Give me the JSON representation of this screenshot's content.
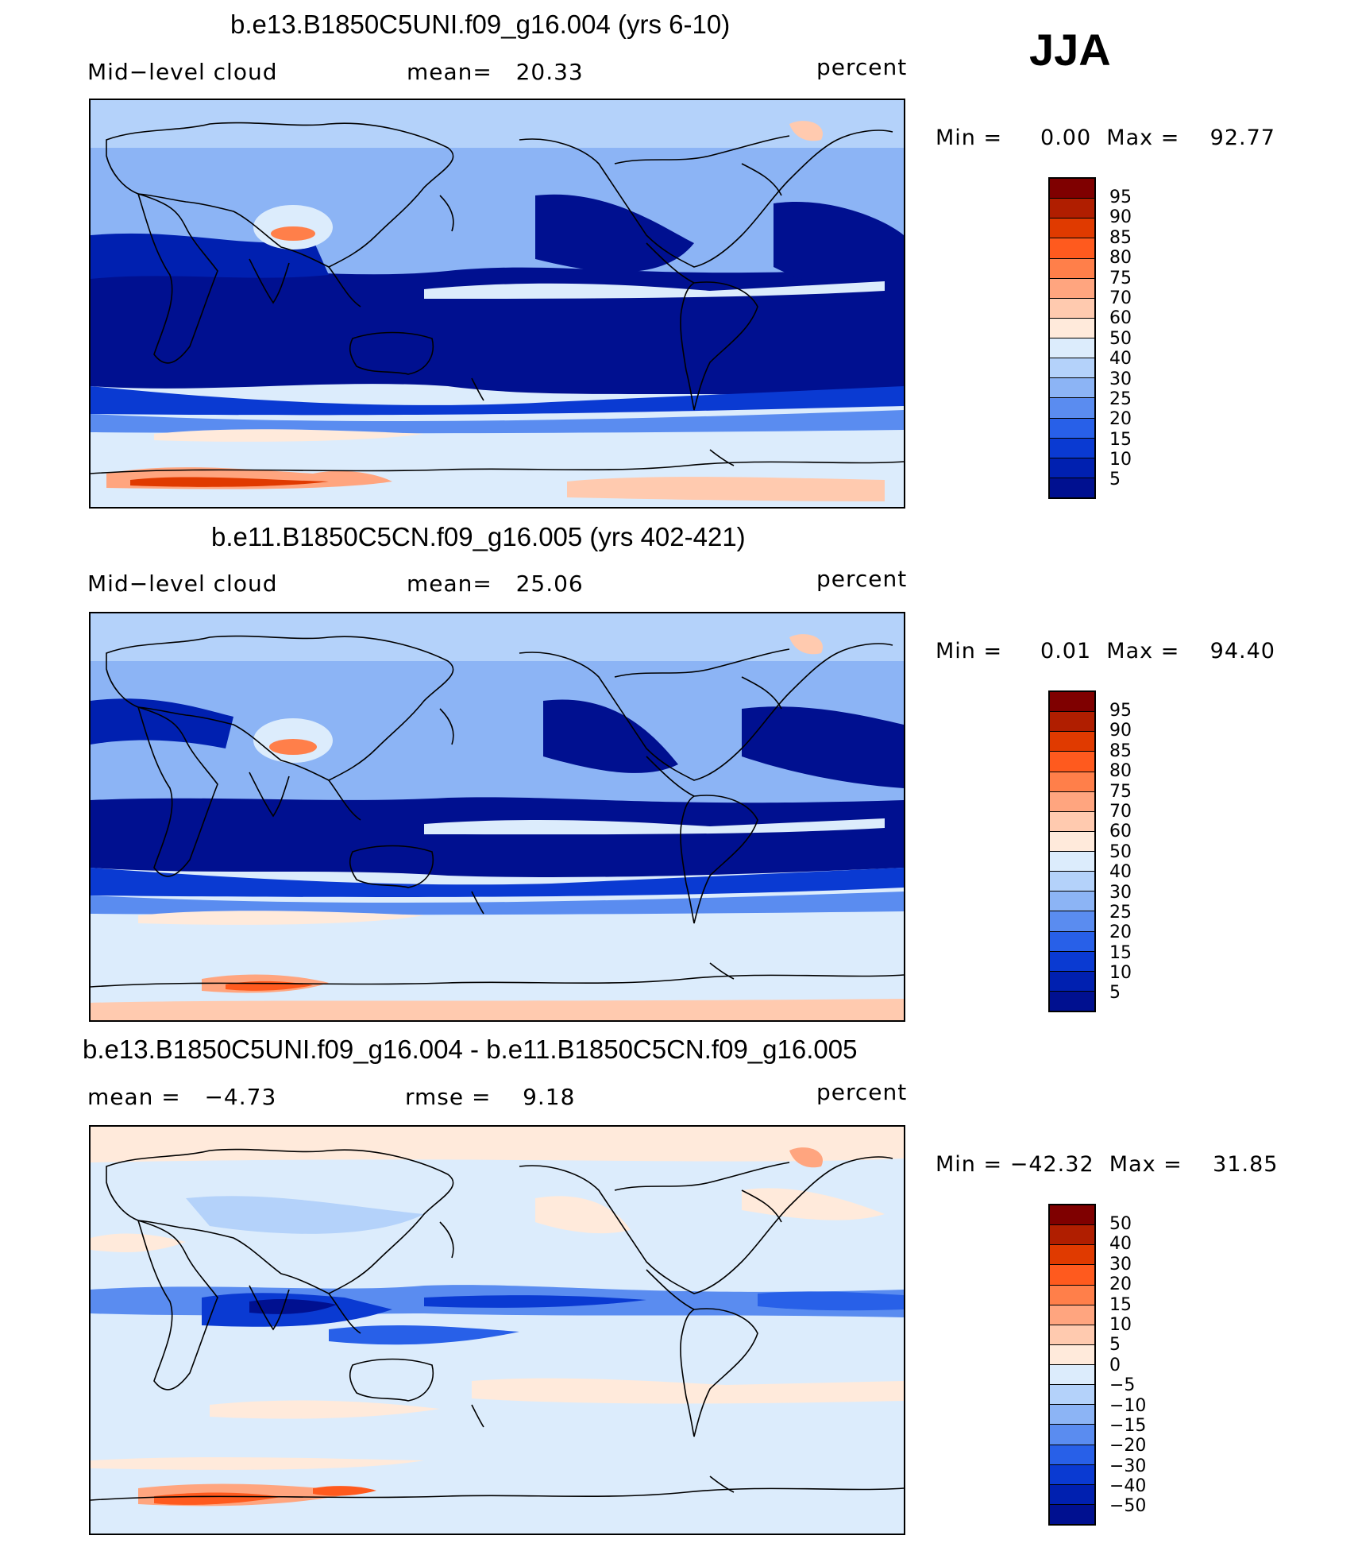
{
  "season": "JJA",
  "panels": [
    {
      "title": "b.e13.B1850C5UNI.f09_g16.004 (yrs 6-10)",
      "variable": "Mid−level cloud",
      "stat": "mean=   20.33",
      "units": "percent",
      "minmax": "Min =     0.00  Max =    92.77",
      "kind": "abs"
    },
    {
      "title": "b.e11.B1850C5CN.f09_g16.005 (yrs 402-421)",
      "variable": "Mid−level cloud",
      "stat": "mean=   25.06",
      "units": "percent",
      "minmax": "Min =     0.01  Max =    94.40",
      "kind": "abs"
    },
    {
      "title": "b.e13.B1850C5UNI.f09_g16.004 - b.e11.B1850C5CN.f09_g16.005",
      "variable": "mean =   −4.73",
      "stat": "rmse =    9.18",
      "units": "percent",
      "minmax": "Min = −42.32  Max =    31.85",
      "kind": "diff"
    }
  ],
  "colorbars": {
    "abs": {
      "labels": [
        "95",
        "90",
        "85",
        "80",
        "75",
        "70",
        "60",
        "50",
        "40",
        "30",
        "25",
        "20",
        "15",
        "10",
        "5"
      ],
      "colors": [
        "#7f0000",
        "#b01e00",
        "#e03a00",
        "#ff5a1e",
        "#ff7f4a",
        "#ffa57f",
        "#ffcaaf",
        "#ffeadb",
        "#dcecfc",
        "#b4d2fa",
        "#8cb4f5",
        "#5a8cf0",
        "#2860e8",
        "#0a3ad2",
        "#0020b0",
        "#001090"
      ]
    },
    "diff": {
      "labels": [
        "50",
        "40",
        "30",
        "20",
        "15",
        "10",
        "5",
        "0",
        "−5",
        "−10",
        "−15",
        "−20",
        "−30",
        "−40",
        "−50"
      ],
      "colors": [
        "#7f0000",
        "#b01e00",
        "#e03a00",
        "#ff5a1e",
        "#ff7f4a",
        "#ffa57f",
        "#ffcaaf",
        "#ffeadb",
        "#dcecfc",
        "#b4d2fa",
        "#8cb4f5",
        "#5a8cf0",
        "#2860e8",
        "#0a3ad2",
        "#0020b0",
        "#001090"
      ]
    }
  }
}
